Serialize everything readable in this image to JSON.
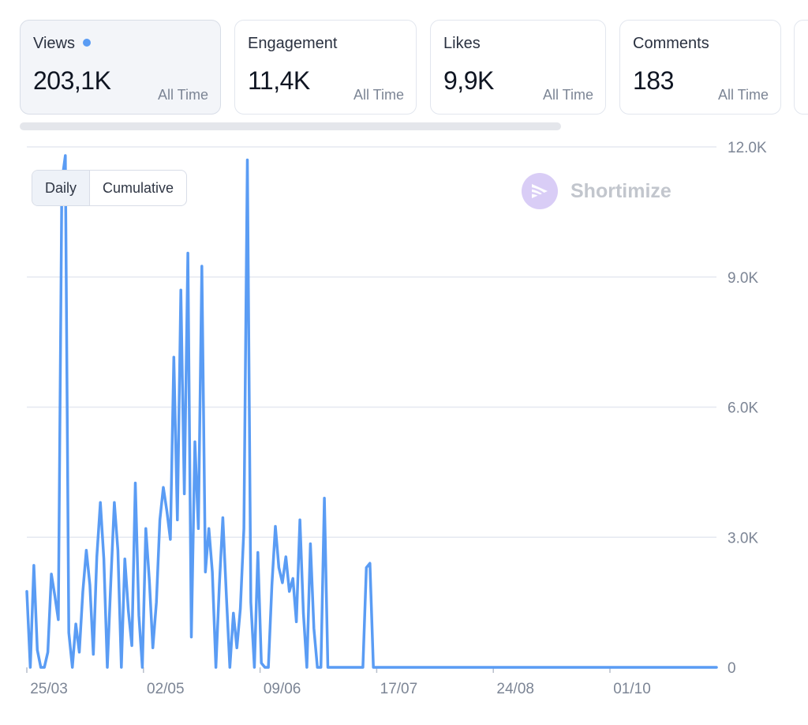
{
  "metrics": [
    {
      "label": "Views",
      "value": "203,1K",
      "period": "All Time",
      "active": true
    },
    {
      "label": "Engagement",
      "value": "11,4K",
      "period": "All Time",
      "active": false
    },
    {
      "label": "Likes",
      "value": "9,9K",
      "period": "All Time",
      "active": false
    },
    {
      "label": "Comments",
      "value": "183",
      "period": "All Time",
      "active": false
    }
  ],
  "view_toggle": {
    "daily_label": "Daily",
    "cumulative_label": "Cumulative",
    "selected": "daily"
  },
  "brand": {
    "name": "Shortimize",
    "icon": "shortimize-logo-icon"
  },
  "colors": {
    "line": "#5a9cf4",
    "grid": "#e5e8f0",
    "axis_text": "#7c8595",
    "accent_dot": "#5a9cf4"
  },
  "chart_data": {
    "type": "line",
    "x_tick_labels": [
      "25/03",
      "02/05",
      "09/06",
      "17/07",
      "24/08",
      "01/10"
    ],
    "y_tick_labels": [
      "0",
      "3.0K",
      "6.0K",
      "9.0K",
      "12.0K"
    ],
    "ylim": [
      0,
      12000
    ],
    "xlabel": "",
    "ylabel": "",
    "grid": true,
    "series": [
      {
        "values": [
          1750,
          0,
          2350,
          400,
          0,
          0,
          350,
          2150,
          1650,
          1100,
          11200,
          11800,
          800,
          0,
          1000,
          350,
          1750,
          2700,
          1900,
          300,
          2550,
          3800,
          2500,
          0,
          2000,
          3800,
          2700,
          0,
          2500,
          1300,
          500,
          4250,
          1200,
          0,
          3200,
          2000,
          450,
          1500,
          3400,
          4150,
          3600,
          2950,
          7150,
          3400,
          8700,
          4000,
          9550,
          700,
          5200,
          3200,
          9250,
          2200,
          3200,
          2200,
          0,
          1900,
          3450,
          1650,
          0,
          1250,
          450,
          1350,
          3200,
          11700,
          1500,
          0,
          2650,
          100,
          0,
          0,
          1900,
          3250,
          2300,
          1950,
          2550,
          1750,
          2050,
          1050,
          3400,
          1250,
          0,
          2850,
          900,
          0,
          0,
          3900,
          0,
          0,
          0,
          0,
          0,
          0,
          0,
          0,
          0,
          0,
          0,
          2300,
          2400,
          0,
          0,
          0,
          0,
          0,
          0,
          0,
          0,
          0,
          0,
          0,
          0,
          0,
          0,
          0,
          0,
          0,
          0,
          0,
          0,
          0,
          0,
          0,
          0,
          0,
          0,
          0,
          0,
          0,
          0,
          0,
          0,
          0,
          0,
          0,
          0,
          0,
          0,
          0,
          0,
          0,
          0,
          0,
          0,
          0,
          0,
          0,
          0,
          0,
          0,
          0,
          0,
          0,
          0,
          0,
          0,
          0,
          0,
          0,
          0,
          0,
          0,
          0,
          0,
          0,
          0,
          0,
          0,
          0,
          0,
          0,
          0,
          0,
          0,
          0,
          0,
          0,
          0,
          0,
          0,
          0,
          0,
          0,
          0,
          0,
          0,
          0,
          0,
          0,
          0,
          0,
          0,
          0,
          0,
          0,
          0,
          0,
          0,
          0
        ]
      }
    ]
  }
}
